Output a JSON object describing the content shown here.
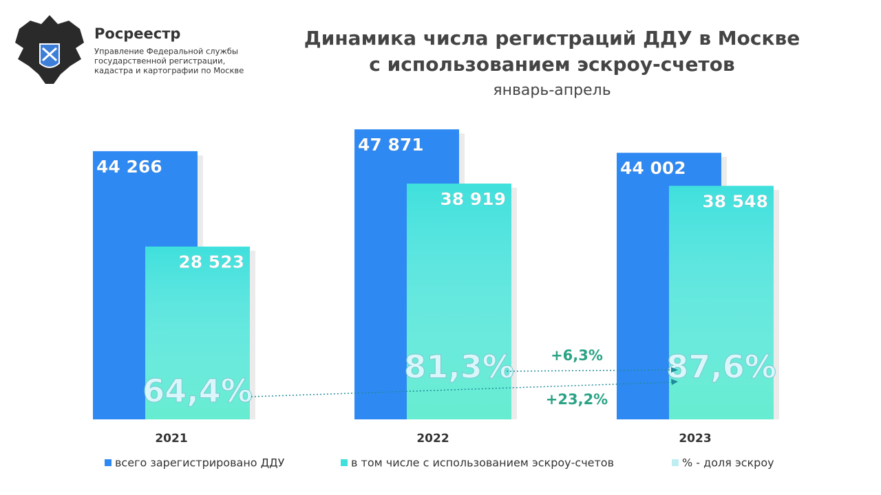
{
  "header": {
    "brand": "Росреестр",
    "org_lines": [
      "Управление Федеральной службы",
      "государственной регистрации,",
      "кадастра и картографии по Москве"
    ]
  },
  "chart_data": {
    "type": "bar",
    "title_lines": [
      "Динамика числа регистраций ДДУ в Москве",
      "с использованием эскроу-счетов"
    ],
    "subtitle": "январь-апрель",
    "categories": [
      "2021",
      "2022",
      "2023"
    ],
    "series": [
      {
        "name": "всего зарегистрировано ДДУ",
        "color": "#2f89f2",
        "values": [
          44266,
          47871,
          44002
        ],
        "value_labels": [
          "44 266",
          "47 871",
          "44 002"
        ]
      },
      {
        "name": "в том числе с использованием эскроу-счетов",
        "color": "#3fe0dc",
        "values": [
          28523,
          38919,
          38548
        ],
        "value_labels": [
          "28 523",
          "38 919",
          "38 548"
        ]
      },
      {
        "name": "% - доля эскроу",
        "color": "#d9f7fa",
        "values": [
          64.4,
          81.3,
          87.6
        ],
        "value_labels": [
          "64,4%",
          "81,3%",
          "87,6%"
        ]
      }
    ],
    "ylim": [
      0,
      48000
    ],
    "annotations": [
      "+6,3%",
      "+23,2%"
    ]
  }
}
